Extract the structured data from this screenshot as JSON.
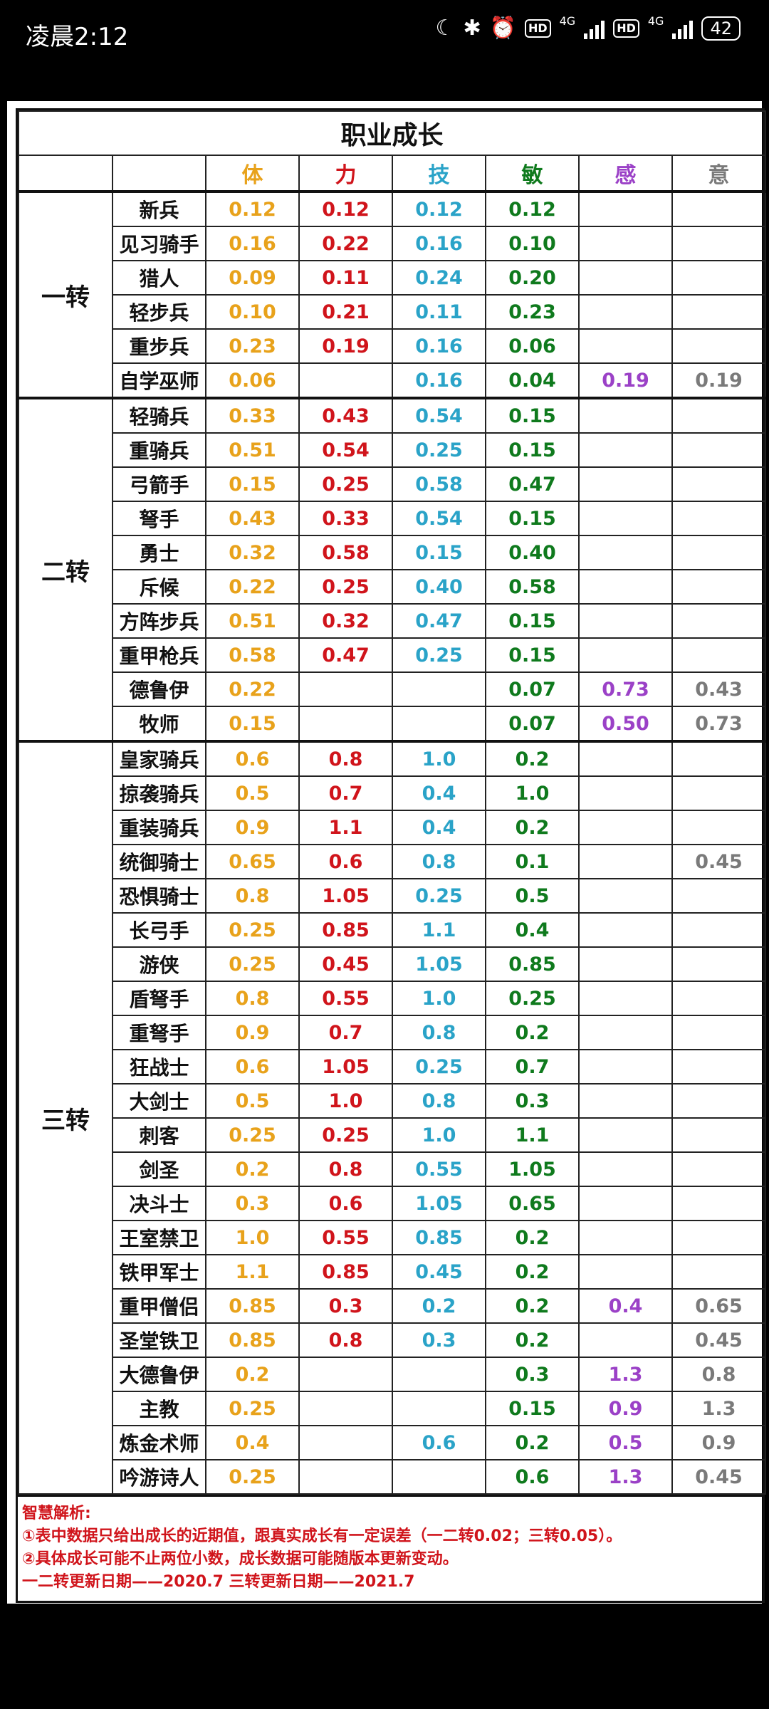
{
  "status": {
    "time": "凌晨2:12",
    "battery": "42",
    "net1": "4G",
    "net2": "4G",
    "hd": "HD"
  },
  "title": "职业成长",
  "headers": [
    "体",
    "力",
    "技",
    "敏",
    "感",
    "意"
  ],
  "colors": {
    "体": "#e8a21b",
    "力": "#d0141b",
    "技": "#2aa3c8",
    "敏": "#0f7a1d",
    "感": "#9b41c7",
    "意": "#7a7a7a"
  },
  "groups": [
    {
      "name": "一转",
      "rows": [
        {
          "cls": "新兵",
          "v": [
            "0.12",
            "0.12",
            "0.12",
            "0.12",
            "",
            ""
          ]
        },
        {
          "cls": "见习骑手",
          "v": [
            "0.16",
            "0.22",
            "0.16",
            "0.10",
            "",
            ""
          ]
        },
        {
          "cls": "猎人",
          "v": [
            "0.09",
            "0.11",
            "0.24",
            "0.20",
            "",
            ""
          ]
        },
        {
          "cls": "轻步兵",
          "v": [
            "0.10",
            "0.21",
            "0.11",
            "0.23",
            "",
            ""
          ]
        },
        {
          "cls": "重步兵",
          "v": [
            "0.23",
            "0.19",
            "0.16",
            "0.06",
            "",
            ""
          ]
        },
        {
          "cls": "自学巫师",
          "v": [
            "0.06",
            "",
            "0.16",
            "0.04",
            "0.19",
            "0.19"
          ]
        }
      ]
    },
    {
      "name": "二转",
      "rows": [
        {
          "cls": "轻骑兵",
          "v": [
            "0.33",
            "0.43",
            "0.54",
            "0.15",
            "",
            ""
          ]
        },
        {
          "cls": "重骑兵",
          "v": [
            "0.51",
            "0.54",
            "0.25",
            "0.15",
            "",
            ""
          ]
        },
        {
          "cls": "弓箭手",
          "v": [
            "0.15",
            "0.25",
            "0.58",
            "0.47",
            "",
            ""
          ]
        },
        {
          "cls": "弩手",
          "v": [
            "0.43",
            "0.33",
            "0.54",
            "0.15",
            "",
            ""
          ]
        },
        {
          "cls": "勇士",
          "v": [
            "0.32",
            "0.58",
            "0.15",
            "0.40",
            "",
            ""
          ]
        },
        {
          "cls": "斥候",
          "v": [
            "0.22",
            "0.25",
            "0.40",
            "0.58",
            "",
            ""
          ]
        },
        {
          "cls": "方阵步兵",
          "v": [
            "0.51",
            "0.32",
            "0.47",
            "0.15",
            "",
            ""
          ]
        },
        {
          "cls": "重甲枪兵",
          "v": [
            "0.58",
            "0.47",
            "0.25",
            "0.15",
            "",
            ""
          ]
        },
        {
          "cls": "德鲁伊",
          "v": [
            "0.22",
            "",
            "",
            "0.07",
            "0.73",
            "0.43"
          ]
        },
        {
          "cls": "牧师",
          "v": [
            "0.15",
            "",
            "",
            "0.07",
            "0.50",
            "0.73"
          ]
        }
      ]
    },
    {
      "name": "三转",
      "rows": [
        {
          "cls": "皇家骑兵",
          "v": [
            "0.6",
            "0.8",
            "1.0",
            "0.2",
            "",
            ""
          ]
        },
        {
          "cls": "掠袭骑兵",
          "v": [
            "0.5",
            "0.7",
            "0.4",
            "1.0",
            "",
            ""
          ]
        },
        {
          "cls": "重装骑兵",
          "v": [
            "0.9",
            "1.1",
            "0.4",
            "0.2",
            "",
            ""
          ]
        },
        {
          "cls": "统御骑士",
          "v": [
            "0.65",
            "0.6",
            "0.8",
            "0.1",
            "",
            "0.45"
          ]
        },
        {
          "cls": "恐惧骑士",
          "v": [
            "0.8",
            "1.05",
            "0.25",
            "0.5",
            "",
            ""
          ]
        },
        {
          "cls": "长弓手",
          "v": [
            "0.25",
            "0.85",
            "1.1",
            "0.4",
            "",
            ""
          ]
        },
        {
          "cls": "游侠",
          "v": [
            "0.25",
            "0.45",
            "1.05",
            "0.85",
            "",
            ""
          ]
        },
        {
          "cls": "盾弩手",
          "v": [
            "0.8",
            "0.55",
            "1.0",
            "0.25",
            "",
            ""
          ]
        },
        {
          "cls": "重弩手",
          "v": [
            "0.9",
            "0.7",
            "0.8",
            "0.2",
            "",
            ""
          ]
        },
        {
          "cls": "狂战士",
          "v": [
            "0.6",
            "1.05",
            "0.25",
            "0.7",
            "",
            ""
          ]
        },
        {
          "cls": "大剑士",
          "v": [
            "0.5",
            "1.0",
            "0.8",
            "0.3",
            "",
            ""
          ]
        },
        {
          "cls": "刺客",
          "v": [
            "0.25",
            "0.25",
            "1.0",
            "1.1",
            "",
            ""
          ]
        },
        {
          "cls": "剑圣",
          "v": [
            "0.2",
            "0.8",
            "0.55",
            "1.05",
            "",
            ""
          ]
        },
        {
          "cls": "决斗士",
          "v": [
            "0.3",
            "0.6",
            "1.05",
            "0.65",
            "",
            ""
          ]
        },
        {
          "cls": "王室禁卫",
          "v": [
            "1.0",
            "0.55",
            "0.85",
            "0.2",
            "",
            ""
          ]
        },
        {
          "cls": "铁甲军士",
          "v": [
            "1.1",
            "0.85",
            "0.45",
            "0.2",
            "",
            ""
          ]
        },
        {
          "cls": "重甲僧侣",
          "v": [
            "0.85",
            "0.3",
            "0.2",
            "0.2",
            "0.4",
            "0.65"
          ]
        },
        {
          "cls": "圣堂铁卫",
          "v": [
            "0.85",
            "0.8",
            "0.3",
            "0.2",
            "",
            "0.45"
          ]
        },
        {
          "cls": "大德鲁伊",
          "v": [
            "0.2",
            "",
            "",
            "0.3",
            "1.3",
            "0.8"
          ]
        },
        {
          "cls": "主教",
          "v": [
            "0.25",
            "",
            "",
            "0.15",
            "0.9",
            "1.3"
          ]
        },
        {
          "cls": "炼金术师",
          "v": [
            "0.4",
            "",
            "0.6",
            "0.2",
            "0.5",
            "0.9"
          ]
        },
        {
          "cls": "吟游诗人",
          "v": [
            "0.25",
            "",
            "",
            "0.6",
            "1.3",
            "0.45"
          ]
        }
      ]
    }
  ],
  "notes": [
    "智慧解析:",
    "①表中数据只给出成长的近期值，跟真实成长有一定误差（一二转0.02；三转0.05）。",
    "②具体成长可能不止两位小数，成长数据可能随版本更新变动。",
    "一二转更新日期——2020.7 三转更新日期——2021.7"
  ]
}
